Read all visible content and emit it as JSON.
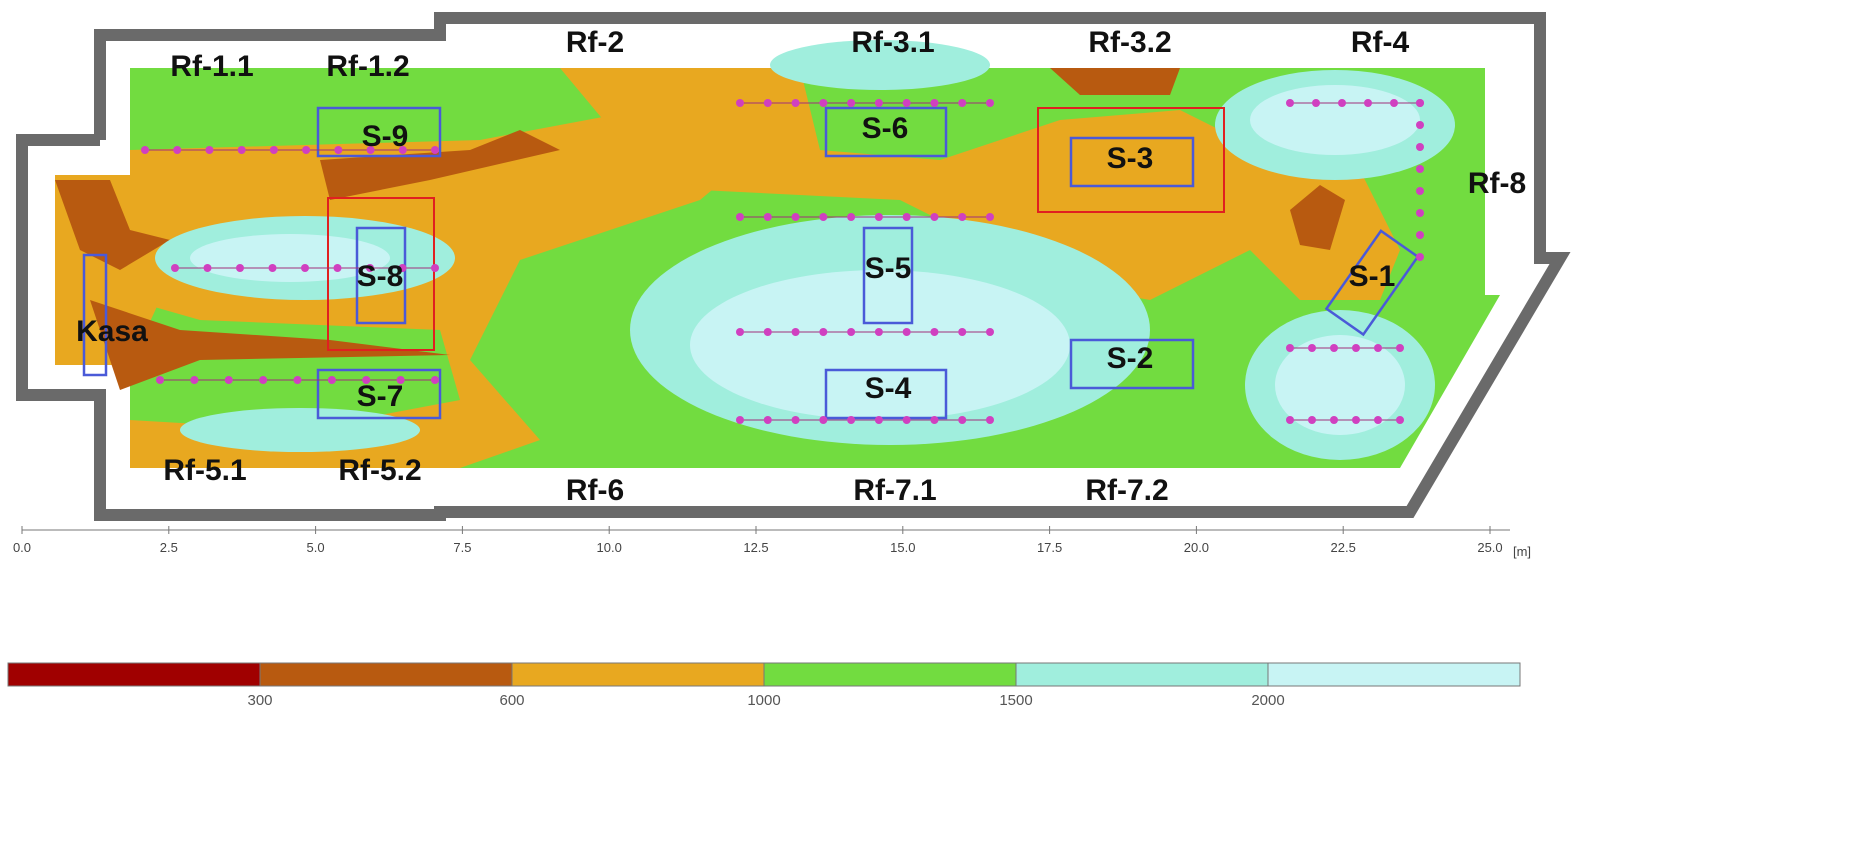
{
  "plan": {
    "windows": [
      "Rf-1.1",
      "Rf-1.2",
      "Rf-2",
      "Rf-3.1",
      "Rf-3.2",
      "Rf-4",
      "Rf-5.1",
      "Rf-5.2",
      "Rf-6",
      "Rf-7.1",
      "Rf-7.2",
      "Rf-8"
    ],
    "zones": [
      "S-1",
      "S-2",
      "S-3",
      "S-4",
      "S-5",
      "S-6",
      "S-7",
      "S-8",
      "S-9"
    ],
    "cashier": "Kasa"
  },
  "scale": {
    "ticks": [
      "0.0",
      "2.5",
      "5.0",
      "7.5",
      "10.0",
      "12.5",
      "15.0",
      "17.5",
      "20.0",
      "22.5",
      "25.0"
    ],
    "unit": "[m]"
  },
  "legend": {
    "thresholds": [
      "300",
      "600",
      "1000",
      "1500",
      "2000"
    ]
  }
}
